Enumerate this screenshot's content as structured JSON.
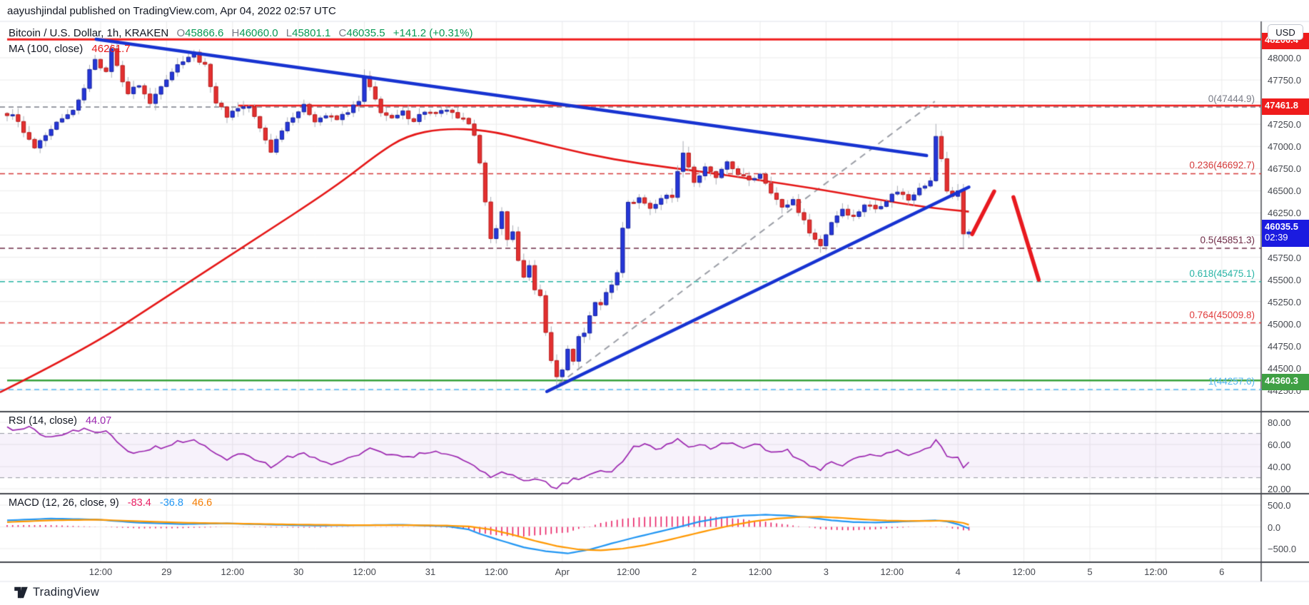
{
  "attribution": "aayushjindal published on TradingView.com, Apr 04, 2022 02:57 UTC",
  "header": {
    "symbol": "Bitcoin / U.S. Dollar, 1h, KRAKEN",
    "o_label": "O",
    "o": "45866.6",
    "h_label": "H",
    "h": "46060.0",
    "l_label": "L",
    "l": "45801.1",
    "c_label": "C",
    "c": "46035.5",
    "change": "+141.2 (+0.31%)"
  },
  "ma_legend": {
    "label": "MA (100, close)",
    "value": "46261.7"
  },
  "rsi_legend": {
    "label": "RSI (14, close)",
    "value": "44.07"
  },
  "macd_legend": {
    "label": "MACD (12, 26, close, 9)",
    "hist": "-83.4",
    "macd": "-36.8",
    "signal": "46.6"
  },
  "axis": {
    "currency": "USD",
    "price_ticks": [
      48000,
      47750,
      47500,
      47250,
      47000,
      46750,
      46500,
      46250,
      46000,
      45750,
      45500,
      45250,
      45000,
      44750,
      44500,
      44250
    ],
    "rsi_ticks": [
      80,
      60,
      40,
      20
    ],
    "macd_ticks": [
      500,
      0,
      -500
    ],
    "time_labels": [
      "12:00",
      "29",
      "12:00",
      "30",
      "12:00",
      "31",
      "12:00",
      "Apr",
      "12:00",
      "2",
      "12:00",
      "3",
      "12:00",
      "4",
      "12:00",
      "5",
      "12:00",
      "6"
    ]
  },
  "price_tags": [
    {
      "text": "48206.4",
      "price": 48206.4,
      "bg": "#ef1c1c"
    },
    {
      "text": "47461.8",
      "price": 47461.8,
      "bg": "#ef1c1c"
    },
    {
      "text": "46035.5",
      "sub": "02:39",
      "price": 46035.5,
      "bg": "#1b1be0"
    },
    {
      "text": "44360.3",
      "price": 44360.3,
      "bg": "#3fa044"
    }
  ],
  "logo": {
    "text": "TradingView"
  },
  "chart_data": {
    "type": "candlestick",
    "symbol": "Bitcoin / U.S. Dollar",
    "exchange": "KRAKEN",
    "interval": "1h",
    "ohlc": {
      "open": 45866.6,
      "high": 46060.0,
      "low": 45801.1,
      "close": 46035.5,
      "change": 141.2,
      "change_pct": 0.31
    },
    "ylim": [
      44000,
      48420
    ],
    "candle_count": 176,
    "candle_jitter": 55,
    "price_path": [
      [
        0,
        47330
      ],
      [
        1,
        47380
      ],
      [
        3,
        47150
      ],
      [
        5,
        46980
      ],
      [
        7,
        47100
      ],
      [
        9,
        47250
      ],
      [
        11,
        47350
      ],
      [
        13,
        47500
      ],
      [
        15,
        47850
      ],
      [
        16,
        48000
      ],
      [
        18,
        47820
      ],
      [
        19,
        48120
      ],
      [
        20,
        47900
      ],
      [
        22,
        47600
      ],
      [
        24,
        47700
      ],
      [
        26,
        47480
      ],
      [
        28,
        47700
      ],
      [
        30,
        47850
      ],
      [
        32,
        47980
      ],
      [
        34,
        48050
      ],
      [
        36,
        47900
      ],
      [
        38,
        47500
      ],
      [
        40,
        47350
      ],
      [
        42,
        47440
      ],
      [
        44,
        47450
      ],
      [
        46,
        47200
      ],
      [
        48,
        46950
      ],
      [
        50,
        47200
      ],
      [
        52,
        47350
      ],
      [
        54,
        47450
      ],
      [
        56,
        47300
      ],
      [
        58,
        47350
      ],
      [
        60,
        47300
      ],
      [
        62,
        47400
      ],
      [
        64,
        47500
      ],
      [
        65,
        47780
      ],
      [
        66,
        47650
      ],
      [
        68,
        47400
      ],
      [
        70,
        47300
      ],
      [
        72,
        47380
      ],
      [
        74,
        47300
      ],
      [
        76,
        47400
      ],
      [
        78,
        47350
      ],
      [
        80,
        47420
      ],
      [
        82,
        47300
      ],
      [
        84,
        47280
      ],
      [
        85,
        47150
      ],
      [
        86,
        46800
      ],
      [
        87,
        46350
      ],
      [
        88,
        45950
      ],
      [
        89,
        46100
      ],
      [
        90,
        46250
      ],
      [
        91,
        45950
      ],
      [
        92,
        46050
      ],
      [
        93,
        45700
      ],
      [
        94,
        45500
      ],
      [
        95,
        45650
      ],
      [
        96,
        45400
      ],
      [
        97,
        45300
      ],
      [
        98,
        44900
      ],
      [
        99,
        44600
      ],
      [
        100,
        44380
      ],
      [
        101,
        44500
      ],
      [
        102,
        44700
      ],
      [
        103,
        44600
      ],
      [
        104,
        44850
      ],
      [
        105,
        44900
      ],
      [
        106,
        45100
      ],
      [
        107,
        45250
      ],
      [
        108,
        45200
      ],
      [
        109,
        45350
      ],
      [
        110,
        45450
      ],
      [
        111,
        45600
      ],
      [
        112,
        46100
      ],
      [
        113,
        46350
      ],
      [
        115,
        46420
      ],
      [
        117,
        46300
      ],
      [
        119,
        46420
      ],
      [
        121,
        46450
      ],
      [
        123,
        46950
      ],
      [
        125,
        46600
      ],
      [
        127,
        46750
      ],
      [
        129,
        46650
      ],
      [
        131,
        46800
      ],
      [
        133,
        46700
      ],
      [
        135,
        46600
      ],
      [
        137,
        46700
      ],
      [
        139,
        46500
      ],
      [
        141,
        46300
      ],
      [
        143,
        46400
      ],
      [
        145,
        46150
      ],
      [
        147,
        45950
      ],
      [
        148,
        45880
      ],
      [
        150,
        46150
      ],
      [
        152,
        46300
      ],
      [
        154,
        46200
      ],
      [
        156,
        46350
      ],
      [
        158,
        46300
      ],
      [
        160,
        46400
      ],
      [
        162,
        46500
      ],
      [
        164,
        46400
      ],
      [
        166,
        46550
      ],
      [
        168,
        46600
      ],
      [
        169,
        47120
      ],
      [
        170,
        46850
      ],
      [
        171,
        46500
      ],
      [
        172,
        46450
      ],
      [
        173,
        46500
      ],
      [
        174,
        46000
      ],
      [
        175,
        46035.5
      ]
    ],
    "wick_overrides": [
      {
        "t": 19,
        "high": 48160
      },
      {
        "t": 34,
        "high": 48090
      },
      {
        "t": 65,
        "high": 47870
      },
      {
        "t": 100,
        "low": 44257.6
      },
      {
        "t": 123,
        "high": 47060
      },
      {
        "t": 148,
        "low": 45800
      },
      {
        "t": 169,
        "high": 47255
      },
      {
        "t": 174,
        "low": 45855
      }
    ],
    "ma_path": [
      [
        -1.3,
        44227
      ],
      [
        14.3,
        44710
      ],
      [
        29.2,
        45313
      ],
      [
        44.2,
        45916
      ],
      [
        59.7,
        46543
      ],
      [
        67.5,
        46921
      ],
      [
        72.7,
        47122
      ],
      [
        79.2,
        47202
      ],
      [
        87,
        47186
      ],
      [
        94.8,
        47074
      ],
      [
        105.2,
        46913
      ],
      [
        115.6,
        46800
      ],
      [
        126,
        46720
      ],
      [
        136.4,
        46623
      ],
      [
        146.8,
        46527
      ],
      [
        157.1,
        46414
      ],
      [
        167.5,
        46310
      ],
      [
        175,
        46265
      ]
    ],
    "horizontal_lines": [
      {
        "price": 48206.4,
        "color": "#f01d1d",
        "width": 3,
        "from_t": 0
      },
      {
        "price": 47461.8,
        "color": "#f01d1d",
        "width": 2.5,
        "from_t": 42
      },
      {
        "price": 44360.3,
        "color": "#37a23b",
        "width": 2.5,
        "from_t": 0
      }
    ],
    "fib_levels": [
      {
        "label": "0(47444.9)",
        "price": 47444.9,
        "color": "#787b86"
      },
      {
        "label": "0.236(46692.7)",
        "price": 46692.7,
        "color": "#d43a3a"
      },
      {
        "label": "0.5(45851.3)",
        "price": 45851.3,
        "color": "#6e2b46"
      },
      {
        "label": "0.618(45475.1)",
        "price": 45475.1,
        "color": "#26b3a4"
      },
      {
        "label": "0.764(45009.8)",
        "price": 45009.8,
        "color": "#e03c3c"
      },
      {
        "label": "1(44257.6)",
        "price": 44257.6,
        "color": "#54b6f2"
      }
    ],
    "trendlines": [
      {
        "name": "descending-resistance",
        "t1": 16.2,
        "p1": 48210,
        "t2": 167.3,
        "p2": 46897,
        "color": "#1733d1",
        "width": 4.5
      },
      {
        "name": "ascending-support",
        "t1": 98.2,
        "p1": 44236,
        "t2": 175.0,
        "p2": 46541,
        "color": "#1733d1",
        "width": 4.5
      },
      {
        "name": "channel-dashed",
        "t1": 98.7,
        "p1": 44244,
        "t2": 168.8,
        "p2": 47508,
        "color": "#9b9ea6",
        "width": 2,
        "dash": [
          9,
          7
        ]
      },
      {
        "name": "projection-up",
        "t1": 175.6,
        "p1": 46010,
        "t2": 179.6,
        "p2": 46493,
        "color": "#e8191f",
        "width": 5.5
      },
      {
        "name": "projection-down",
        "t1": 183.1,
        "p1": 46428,
        "t2": 187.7,
        "p2": 45496,
        "color": "#e8191f",
        "width": 5.5
      }
    ],
    "rsi": {
      "value": 44.07,
      "band": [
        70,
        30
      ],
      "path": [
        [
          0,
          76
        ],
        [
          2,
          73
        ],
        [
          4,
          77
        ],
        [
          6,
          70
        ],
        [
          8,
          67
        ],
        [
          10,
          70
        ],
        [
          12,
          72
        ],
        [
          14,
          74
        ],
        [
          16,
          70
        ],
        [
          18,
          73
        ],
        [
          20,
          62
        ],
        [
          22,
          55
        ],
        [
          24,
          52
        ],
        [
          26,
          56
        ],
        [
          28,
          58
        ],
        [
          30,
          61
        ],
        [
          32,
          63
        ],
        [
          34,
          64
        ],
        [
          36,
          58
        ],
        [
          38,
          50
        ],
        [
          40,
          47
        ],
        [
          42,
          50
        ],
        [
          44,
          51
        ],
        [
          46,
          44
        ],
        [
          48,
          40
        ],
        [
          50,
          46
        ],
        [
          52,
          50
        ],
        [
          54,
          52
        ],
        [
          56,
          47
        ],
        [
          58,
          44
        ],
        [
          60,
          42
        ],
        [
          62,
          47
        ],
        [
          64,
          52
        ],
        [
          66,
          58
        ],
        [
          68,
          54
        ],
        [
          70,
          50
        ],
        [
          72,
          48
        ],
        [
          74,
          50
        ],
        [
          76,
          53
        ],
        [
          78,
          55
        ],
        [
          80,
          50
        ],
        [
          82,
          48
        ],
        [
          84,
          45
        ],
        [
          85,
          42
        ],
        [
          87,
          34
        ],
        [
          88,
          30
        ],
        [
          90,
          35
        ],
        [
          92,
          31
        ],
        [
          94,
          28
        ],
        [
          96,
          30
        ],
        [
          98,
          25
        ],
        [
          100,
          21
        ],
        [
          102,
          26
        ],
        [
          104,
          30
        ],
        [
          106,
          33
        ],
        [
          108,
          35
        ],
        [
          110,
          36
        ],
        [
          112,
          44
        ],
        [
          114,
          57
        ],
        [
          116,
          60
        ],
        [
          118,
          56
        ],
        [
          120,
          59
        ],
        [
          122,
          66
        ],
        [
          124,
          58
        ],
        [
          126,
          60
        ],
        [
          128,
          57
        ],
        [
          130,
          60
        ],
        [
          132,
          61
        ],
        [
          134,
          57
        ],
        [
          136,
          61
        ],
        [
          138,
          56
        ],
        [
          140,
          52
        ],
        [
          142,
          55
        ],
        [
          144,
          46
        ],
        [
          146,
          42
        ],
        [
          148,
          37
        ],
        [
          150,
          44
        ],
        [
          152,
          41
        ],
        [
          154,
          47
        ],
        [
          156,
          50
        ],
        [
          158,
          49
        ],
        [
          160,
          52
        ],
        [
          162,
          54
        ],
        [
          164,
          51
        ],
        [
          166,
          55
        ],
        [
          168,
          56
        ],
        [
          169,
          63
        ],
        [
          170,
          58
        ],
        [
          171,
          50
        ],
        [
          172,
          48
        ],
        [
          173,
          50
        ],
        [
          174,
          38
        ],
        [
          175,
          44.07
        ]
      ]
    },
    "macd": {
      "hist_value": -83.4,
      "macd_value": -36.8,
      "signal_value": 46.6,
      "macd_path": [
        [
          0,
          150
        ],
        [
          8,
          190
        ],
        [
          16,
          170
        ],
        [
          24,
          95
        ],
        [
          32,
          65
        ],
        [
          40,
          80
        ],
        [
          48,
          50
        ],
        [
          56,
          30
        ],
        [
          64,
          38
        ],
        [
          72,
          48
        ],
        [
          80,
          15
        ],
        [
          84,
          -60
        ],
        [
          86,
          -160
        ],
        [
          90,
          -320
        ],
        [
          94,
          -470
        ],
        [
          98,
          -560
        ],
        [
          102,
          -610
        ],
        [
          106,
          -520
        ],
        [
          110,
          -380
        ],
        [
          114,
          -250
        ],
        [
          118,
          -130
        ],
        [
          122,
          -10
        ],
        [
          126,
          120
        ],
        [
          130,
          210
        ],
        [
          134,
          260
        ],
        [
          138,
          280
        ],
        [
          142,
          260
        ],
        [
          146,
          215
        ],
        [
          150,
          150
        ],
        [
          154,
          110
        ],
        [
          158,
          100
        ],
        [
          162,
          118
        ],
        [
          166,
          138
        ],
        [
          169,
          148
        ],
        [
          171,
          125
        ],
        [
          173,
          60
        ],
        [
          175,
          -36.8
        ]
      ],
      "signal_path": [
        [
          0,
          110
        ],
        [
          8,
          150
        ],
        [
          16,
          165
        ],
        [
          24,
          130
        ],
        [
          32,
          95
        ],
        [
          40,
          80
        ],
        [
          48,
          62
        ],
        [
          56,
          48
        ],
        [
          64,
          38
        ],
        [
          72,
          40
        ],
        [
          80,
          30
        ],
        [
          84,
          10
        ],
        [
          88,
          -60
        ],
        [
          92,
          -180
        ],
        [
          96,
          -320
        ],
        [
          100,
          -440
        ],
        [
          104,
          -520
        ],
        [
          108,
          -540
        ],
        [
          112,
          -500
        ],
        [
          116,
          -420
        ],
        [
          120,
          -310
        ],
        [
          124,
          -190
        ],
        [
          128,
          -70
        ],
        [
          132,
          40
        ],
        [
          136,
          130
        ],
        [
          140,
          190
        ],
        [
          144,
          225
        ],
        [
          148,
          230
        ],
        [
          152,
          205
        ],
        [
          156,
          170
        ],
        [
          160,
          145
        ],
        [
          164,
          135
        ],
        [
          168,
          138
        ],
        [
          170,
          140
        ],
        [
          172,
          130
        ],
        [
          174,
          90
        ],
        [
          175,
          46.6
        ]
      ]
    },
    "colors": {
      "up": "#2536d8",
      "up_border": "#19259e",
      "down": "#e33030",
      "down_border": "#b71c1c",
      "wick": "#a9adb5",
      "ma": "#e51717",
      "grid": "#ececec",
      "divider": "#43464d",
      "rsi_line": "#9c27b0",
      "rsi_band": "rgba(155,84,200,0.08)",
      "macd_line": "#2196f3",
      "signal_line": "#ff9800",
      "hist": "#e91e63"
    }
  }
}
